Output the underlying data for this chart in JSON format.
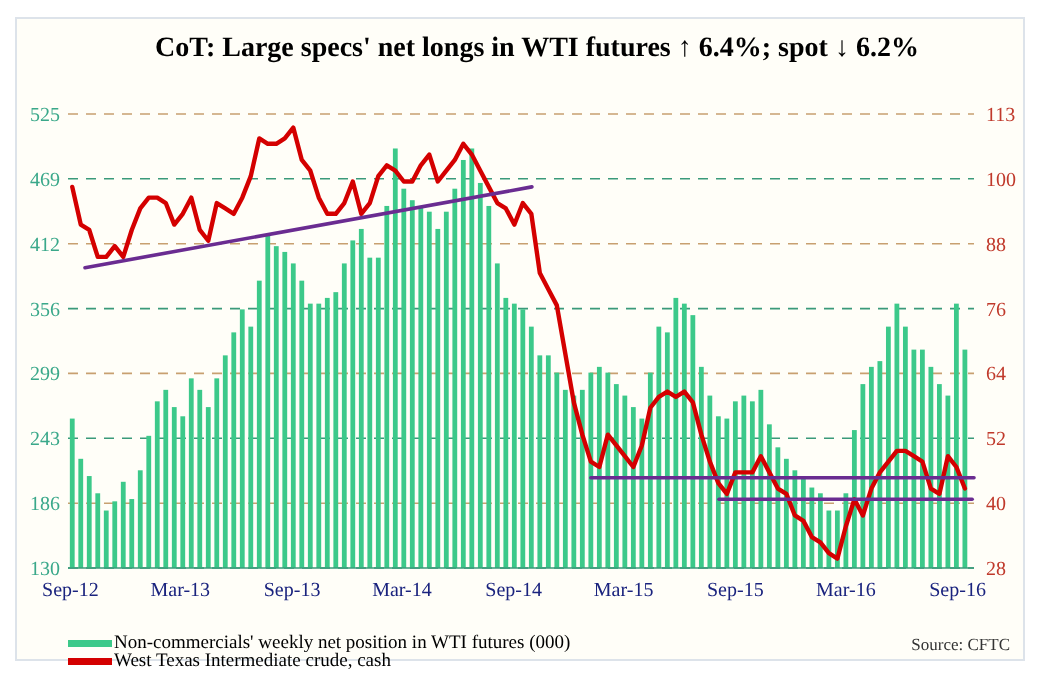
{
  "chart_data": {
    "type": "bar",
    "title": "CoT: Large specs' net longs in WTI futures ↑ 6.4%; spot ↓ 6.2%",
    "annotations": [
      "Source: CFTC"
    ],
    "xlim": [
      "2012-08-28",
      "2016-09-28"
    ],
    "xticks": [
      {
        "value": "2012-09-01",
        "label": "Sep-12"
      },
      {
        "value": "2013-03-01",
        "label": "Mar-13"
      },
      {
        "value": "2013-09-01",
        "label": "Sep-13"
      },
      {
        "value": "2014-03-01",
        "label": "Mar-14"
      },
      {
        "value": "2014-09-01",
        "label": "Sep-14"
      },
      {
        "value": "2015-03-01",
        "label": "Mar-15"
      },
      {
        "value": "2015-09-01",
        "label": "Sep-15"
      },
      {
        "value": "2016-03-01",
        "label": "Mar-16"
      },
      {
        "value": "2016-09-01",
        "label": "Sep-16"
      }
    ],
    "ylim": [
      130,
      525
    ],
    "yticks": [
      130,
      {
        "value": 186.4,
        "label": "186"
      },
      {
        "value": 242.9,
        "label": "243"
      },
      {
        "value": 299.3,
        "label": "299"
      },
      {
        "value": 355.7,
        "label": "356"
      },
      {
        "value": 412.1,
        "label": "412"
      },
      {
        "value": 468.6,
        "label": "469"
      },
      525
    ],
    "y2lim": [
      28.25,
      112.53
    ],
    "y2ticks": [
      {
        "value": 28.25,
        "label": "28"
      },
      {
        "value": 40.29,
        "label": "40"
      },
      {
        "value": 52.33,
        "label": "52"
      },
      {
        "value": 64.37,
        "label": "64"
      },
      {
        "value": 76.41,
        "label": "76"
      },
      {
        "value": 88.45,
        "label": "88"
      },
      {
        "value": 100.49,
        "label": "100"
      },
      {
        "value": 112.53,
        "label": "113"
      }
    ],
    "grid": "y",
    "legend": "bottom",
    "x": [
      "2012-09-04",
      "2012-09-18",
      "2012-10-02",
      "2012-10-16",
      "2012-10-30",
      "2012-11-13",
      "2012-11-27",
      "2012-12-11",
      "2012-12-25",
      "2013-01-08",
      "2013-01-22",
      "2013-02-05",
      "2013-02-19",
      "2013-03-05",
      "2013-03-19",
      "2013-04-02",
      "2013-04-16",
      "2013-04-30",
      "2013-05-14",
      "2013-05-28",
      "2013-06-11",
      "2013-06-25",
      "2013-07-09",
      "2013-07-23",
      "2013-08-06",
      "2013-08-20",
      "2013-09-03",
      "2013-09-17",
      "2013-10-01",
      "2013-10-15",
      "2013-10-29",
      "2013-11-12",
      "2013-11-26",
      "2013-12-10",
      "2013-12-24",
      "2014-01-07",
      "2014-01-21",
      "2014-02-04",
      "2014-02-18",
      "2014-03-04",
      "2014-03-18",
      "2014-04-01",
      "2014-04-15",
      "2014-04-29",
      "2014-05-13",
      "2014-05-27",
      "2014-06-10",
      "2014-06-24",
      "2014-07-08",
      "2014-07-22",
      "2014-08-05",
      "2014-08-19",
      "2014-09-02",
      "2014-09-16",
      "2014-09-30",
      "2014-10-14",
      "2014-10-28",
      "2014-11-11",
      "2014-11-25",
      "2014-12-09",
      "2014-12-23",
      "2015-01-06",
      "2015-01-20",
      "2015-02-03",
      "2015-02-17",
      "2015-03-03",
      "2015-03-17",
      "2015-03-31",
      "2015-04-14",
      "2015-04-28",
      "2015-05-12",
      "2015-05-26",
      "2015-06-09",
      "2015-06-23",
      "2015-07-07",
      "2015-07-21",
      "2015-08-04",
      "2015-08-18",
      "2015-09-01",
      "2015-09-15",
      "2015-09-29",
      "2015-10-13",
      "2015-10-27",
      "2015-11-10",
      "2015-11-24",
      "2015-12-08",
      "2015-12-22",
      "2016-01-05",
      "2016-01-19",
      "2016-02-02",
      "2016-02-16",
      "2016-03-01",
      "2016-03-15",
      "2016-03-29",
      "2016-04-12",
      "2016-04-26",
      "2016-05-10",
      "2016-05-24",
      "2016-06-07",
      "2016-06-21",
      "2016-07-05",
      "2016-07-19",
      "2016-08-02",
      "2016-08-16",
      "2016-08-30",
      "2016-09-13"
    ],
    "series": [
      {
        "name": "Non-commercials' weekly net position in WTI futures (000)",
        "color": "#3cc98a",
        "values": [
          260,
          225,
          210,
          195,
          180,
          188,
          205,
          190,
          215,
          245,
          275,
          285,
          270,
          262,
          295,
          285,
          270,
          295,
          315,
          335,
          355,
          340,
          380,
          420,
          410,
          405,
          395,
          380,
          360,
          360,
          365,
          370,
          395,
          415,
          425,
          400,
          400,
          445,
          495,
          460,
          450,
          445,
          440,
          425,
          440,
          460,
          485,
          495,
          465,
          445,
          395,
          365,
          360,
          355,
          340,
          315,
          315,
          300,
          285,
          280,
          285,
          300,
          305,
          300,
          290,
          280,
          270,
          260,
          300,
          340,
          335,
          365,
          360,
          350,
          305,
          280,
          262,
          260,
          275,
          280,
          275,
          285,
          255,
          235,
          225,
          215,
          208,
          200,
          195,
          180,
          180,
          195,
          250,
          290,
          305,
          310,
          340,
          360,
          340,
          320,
          320,
          305,
          290,
          280,
          360,
          320
        ]
      },
      {
        "name": "West Texas Intermediate crude, cash",
        "type": "line",
        "axis": "y2",
        "color": "#d40000",
        "values": [
          99,
          92,
          91,
          86,
          86,
          88,
          86,
          91,
          95,
          97,
          97,
          96,
          92,
          94,
          97,
          91,
          89,
          96,
          95,
          94,
          97,
          101,
          108,
          107,
          107,
          108,
          110,
          104,
          102,
          97,
          94,
          94,
          96,
          100,
          94,
          96,
          101,
          103,
          102,
          100,
          100,
          103,
          105,
          100,
          102,
          104,
          107,
          105,
          102,
          99,
          96,
          95,
          92,
          96,
          94,
          83,
          80,
          77,
          68,
          59,
          53,
          48,
          47,
          53,
          51,
          49,
          47,
          51,
          58,
          60,
          61,
          60,
          61,
          59,
          53,
          48,
          44,
          42,
          46,
          46,
          46,
          49,
          46,
          43,
          42,
          38,
          37,
          34,
          33,
          31,
          30,
          36,
          41,
          38,
          43,
          46,
          48,
          50,
          50,
          49,
          48,
          43,
          42,
          49,
          47,
          43
        ]
      },
      {
        "type": "line",
        "axis": "y2",
        "color": "#6a2c91",
        "x": [
          "2012-09-25",
          "2014-10-01"
        ],
        "values": [
          84,
          99
        ]
      },
      {
        "type": "line",
        "axis": "y2",
        "color": "#6a2c91",
        "x": [
          "2015-01-06",
          "2016-09-28"
        ],
        "values": [
          45,
          45
        ]
      },
      {
        "type": "line",
        "axis": "y2",
        "color": "#6a2c91",
        "x": [
          "2015-08-05",
          "2016-09-25"
        ],
        "values": [
          41,
          41
        ]
      }
    ]
  }
}
